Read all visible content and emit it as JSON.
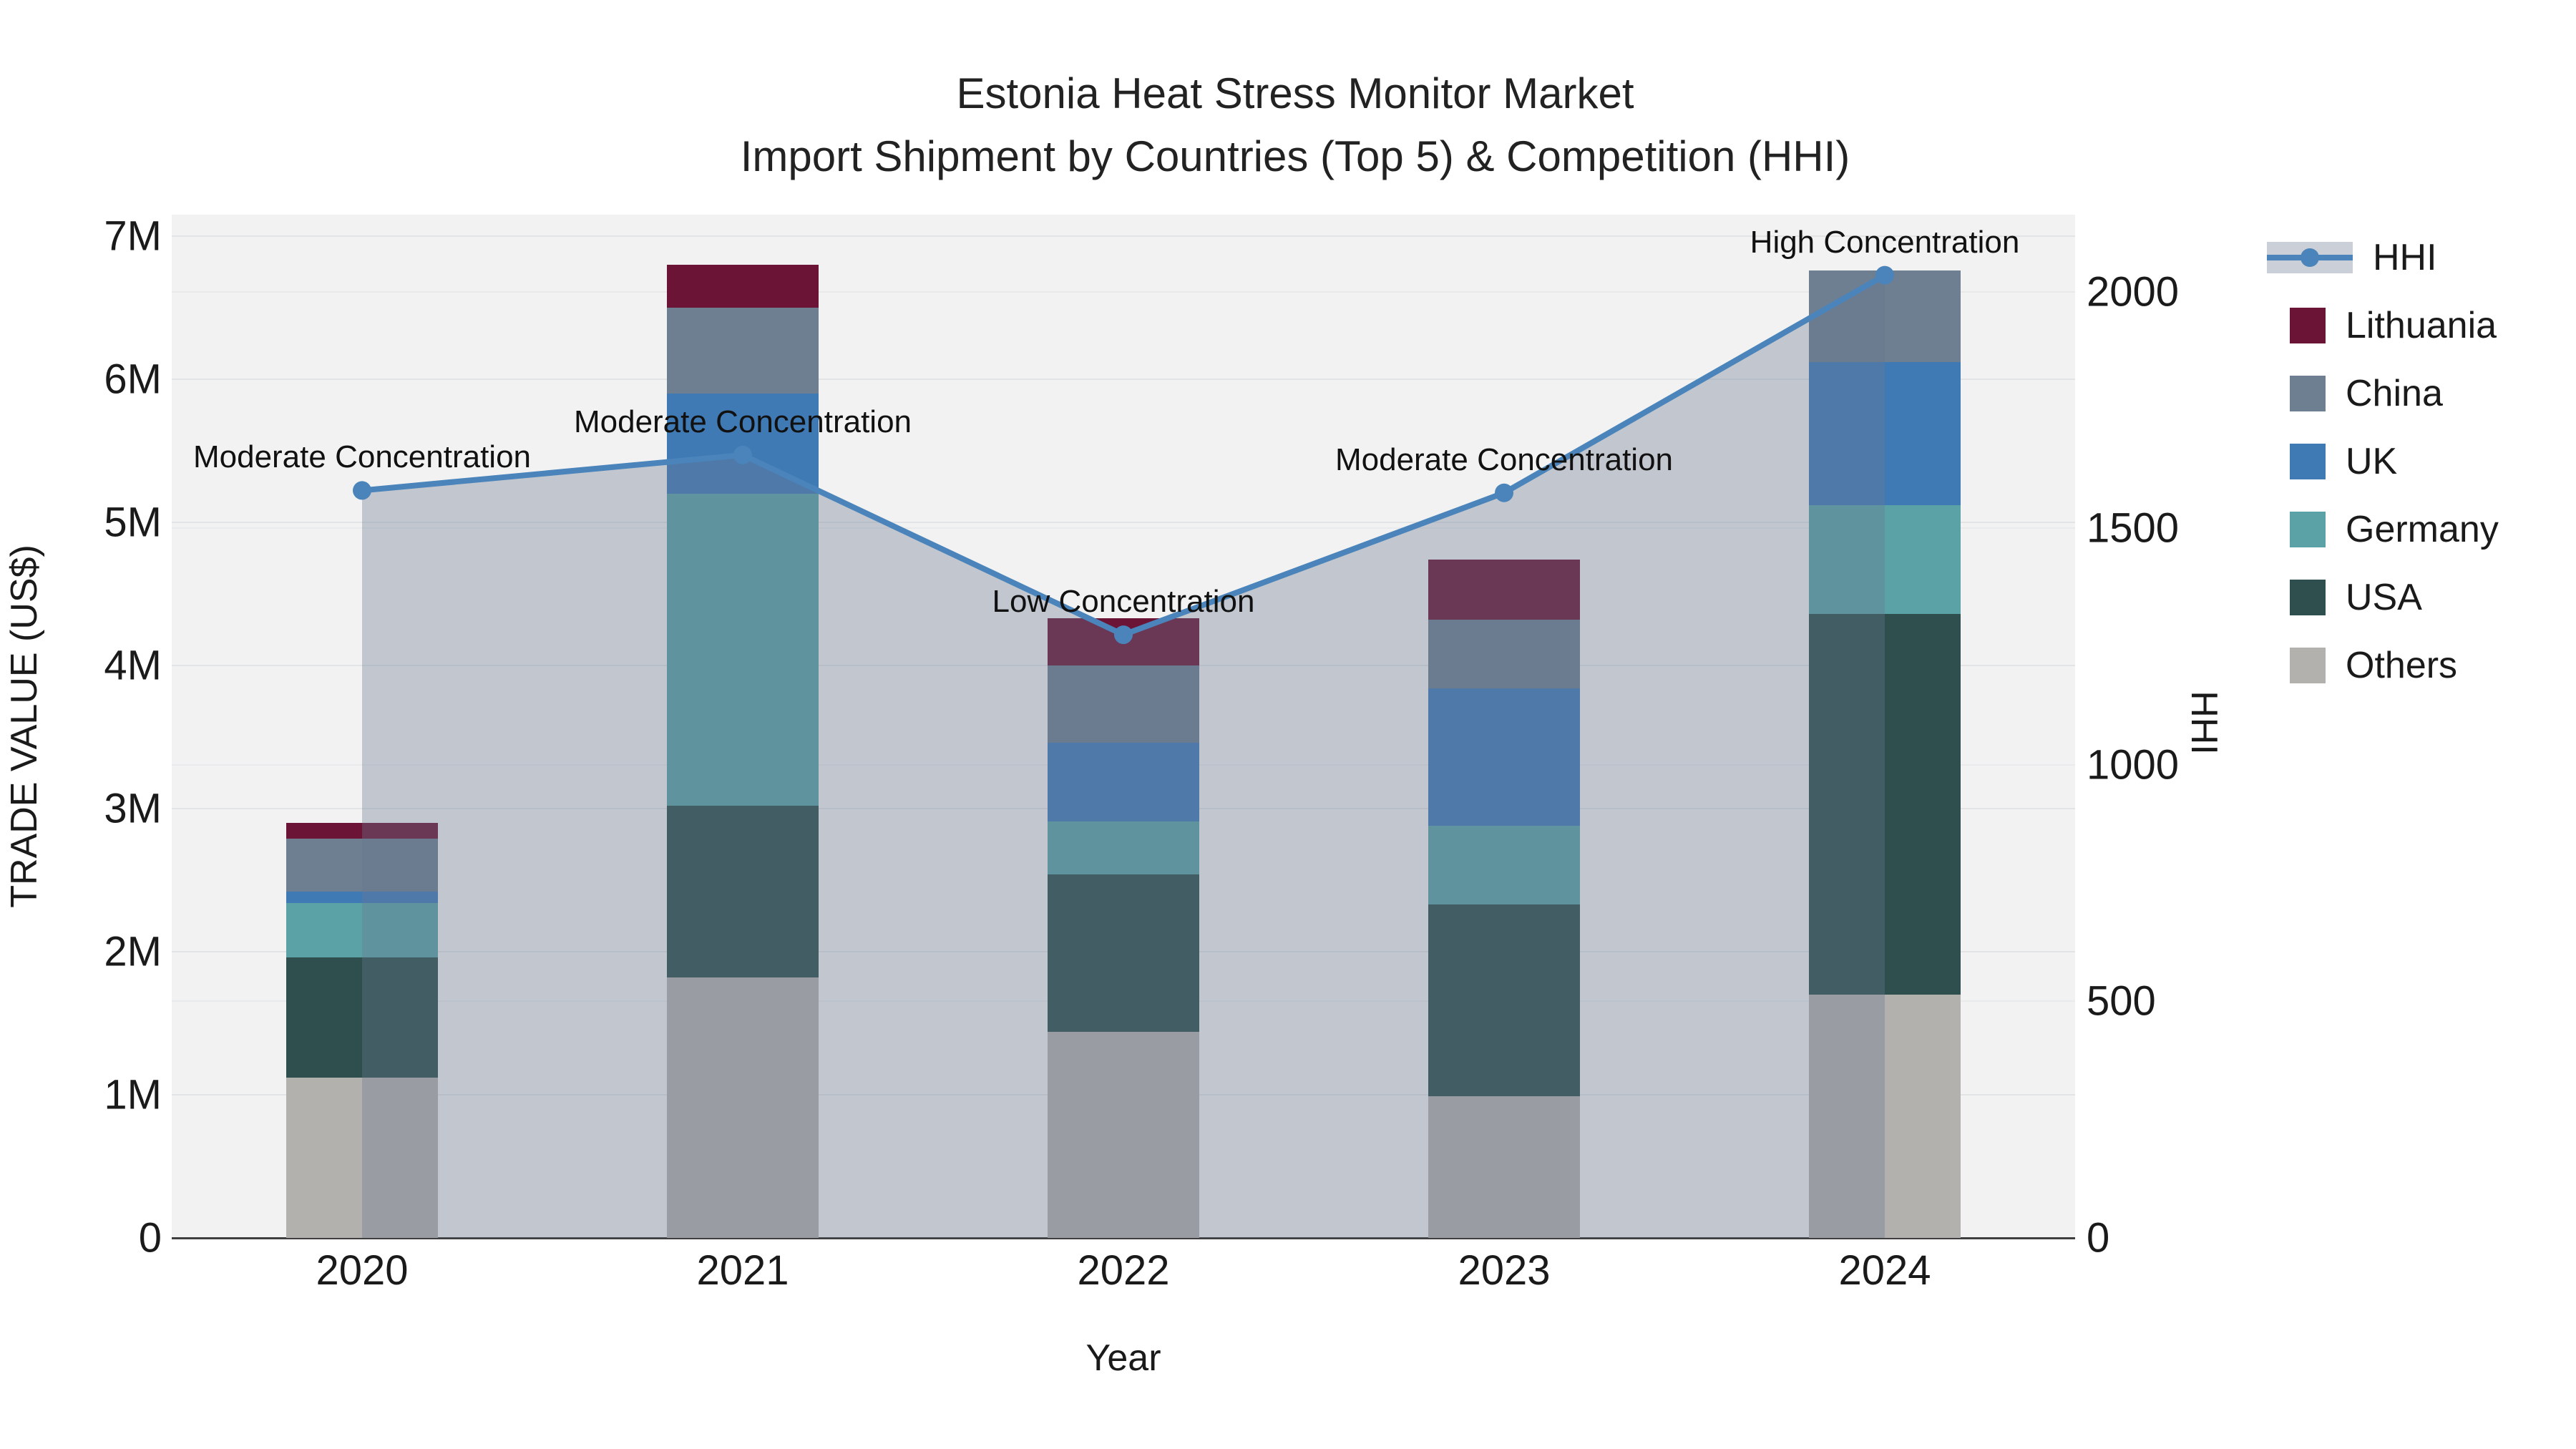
{
  "chart_data": {
    "type": "bar",
    "subtype": "stacked-bar-with-line",
    "title": "Estonia Heat Stress Monitor Market",
    "subtitle": "Import Shipment by Countries (Top 5) & Competition (HHI)",
    "xlabel": "Year",
    "ylabel": "TRADE VALUE (US$)",
    "y2label": "HHI",
    "categories": [
      "2020",
      "2021",
      "2022",
      "2023",
      "2024"
    ],
    "series": [
      {
        "name": "Others",
        "color": "#b3b1ae",
        "values_musd": [
          1.12,
          1.82,
          1.44,
          0.99,
          1.7
        ]
      },
      {
        "name": "USA",
        "color": "#2e4f4d",
        "values_musd": [
          0.84,
          1.2,
          1.1,
          1.34,
          2.66
        ]
      },
      {
        "name": "Germany",
        "color": "#5aa2a6",
        "values_musd": [
          0.38,
          2.18,
          0.37,
          0.55,
          0.76
        ]
      },
      {
        "name": "UK",
        "color": "#3f7ab5",
        "values_musd": [
          0.08,
          0.7,
          0.55,
          0.96,
          1.0
        ]
      },
      {
        "name": "China",
        "color": "#6e7f91",
        "values_musd": [
          0.37,
          0.6,
          0.54,
          0.48,
          0.64
        ]
      },
      {
        "name": "Lithuania",
        "color": "#6b1436",
        "values_musd": [
          0.11,
          0.3,
          0.33,
          0.42,
          0.0
        ]
      }
    ],
    "bar_totals_musd": [
      2.9,
      6.8,
      4.33,
      4.74,
      6.76
    ],
    "line": {
      "name": "HHI",
      "color": "#4a84ba",
      "area_fill_color": "rgba(106,121,143,0.35)",
      "values": [
        1580,
        1655,
        1275,
        1575,
        2035
      ]
    },
    "annotations": [
      {
        "text": "Moderate Concentration",
        "category": "2020"
      },
      {
        "text": "Moderate Concentration",
        "category": "2021"
      },
      {
        "text": "Low Concentration",
        "category": "2022"
      },
      {
        "text": "Moderate Concentration",
        "category": "2023"
      },
      {
        "text": "High Concentration",
        "category": "2024"
      }
    ],
    "y_ticks": [
      "0",
      "1M",
      "2M",
      "3M",
      "4M",
      "5M",
      "6M",
      "7M"
    ],
    "y2_ticks": [
      "0",
      "500",
      "1000",
      "1500",
      "2000"
    ],
    "ylim_musd": [
      0,
      7.15
    ],
    "y2lim": [
      0,
      2163
    ],
    "grid": true,
    "legend_position": "right",
    "legend_items": [
      "HHI",
      "Lithuania",
      "China",
      "UK",
      "Germany",
      "USA",
      "Others"
    ]
  }
}
